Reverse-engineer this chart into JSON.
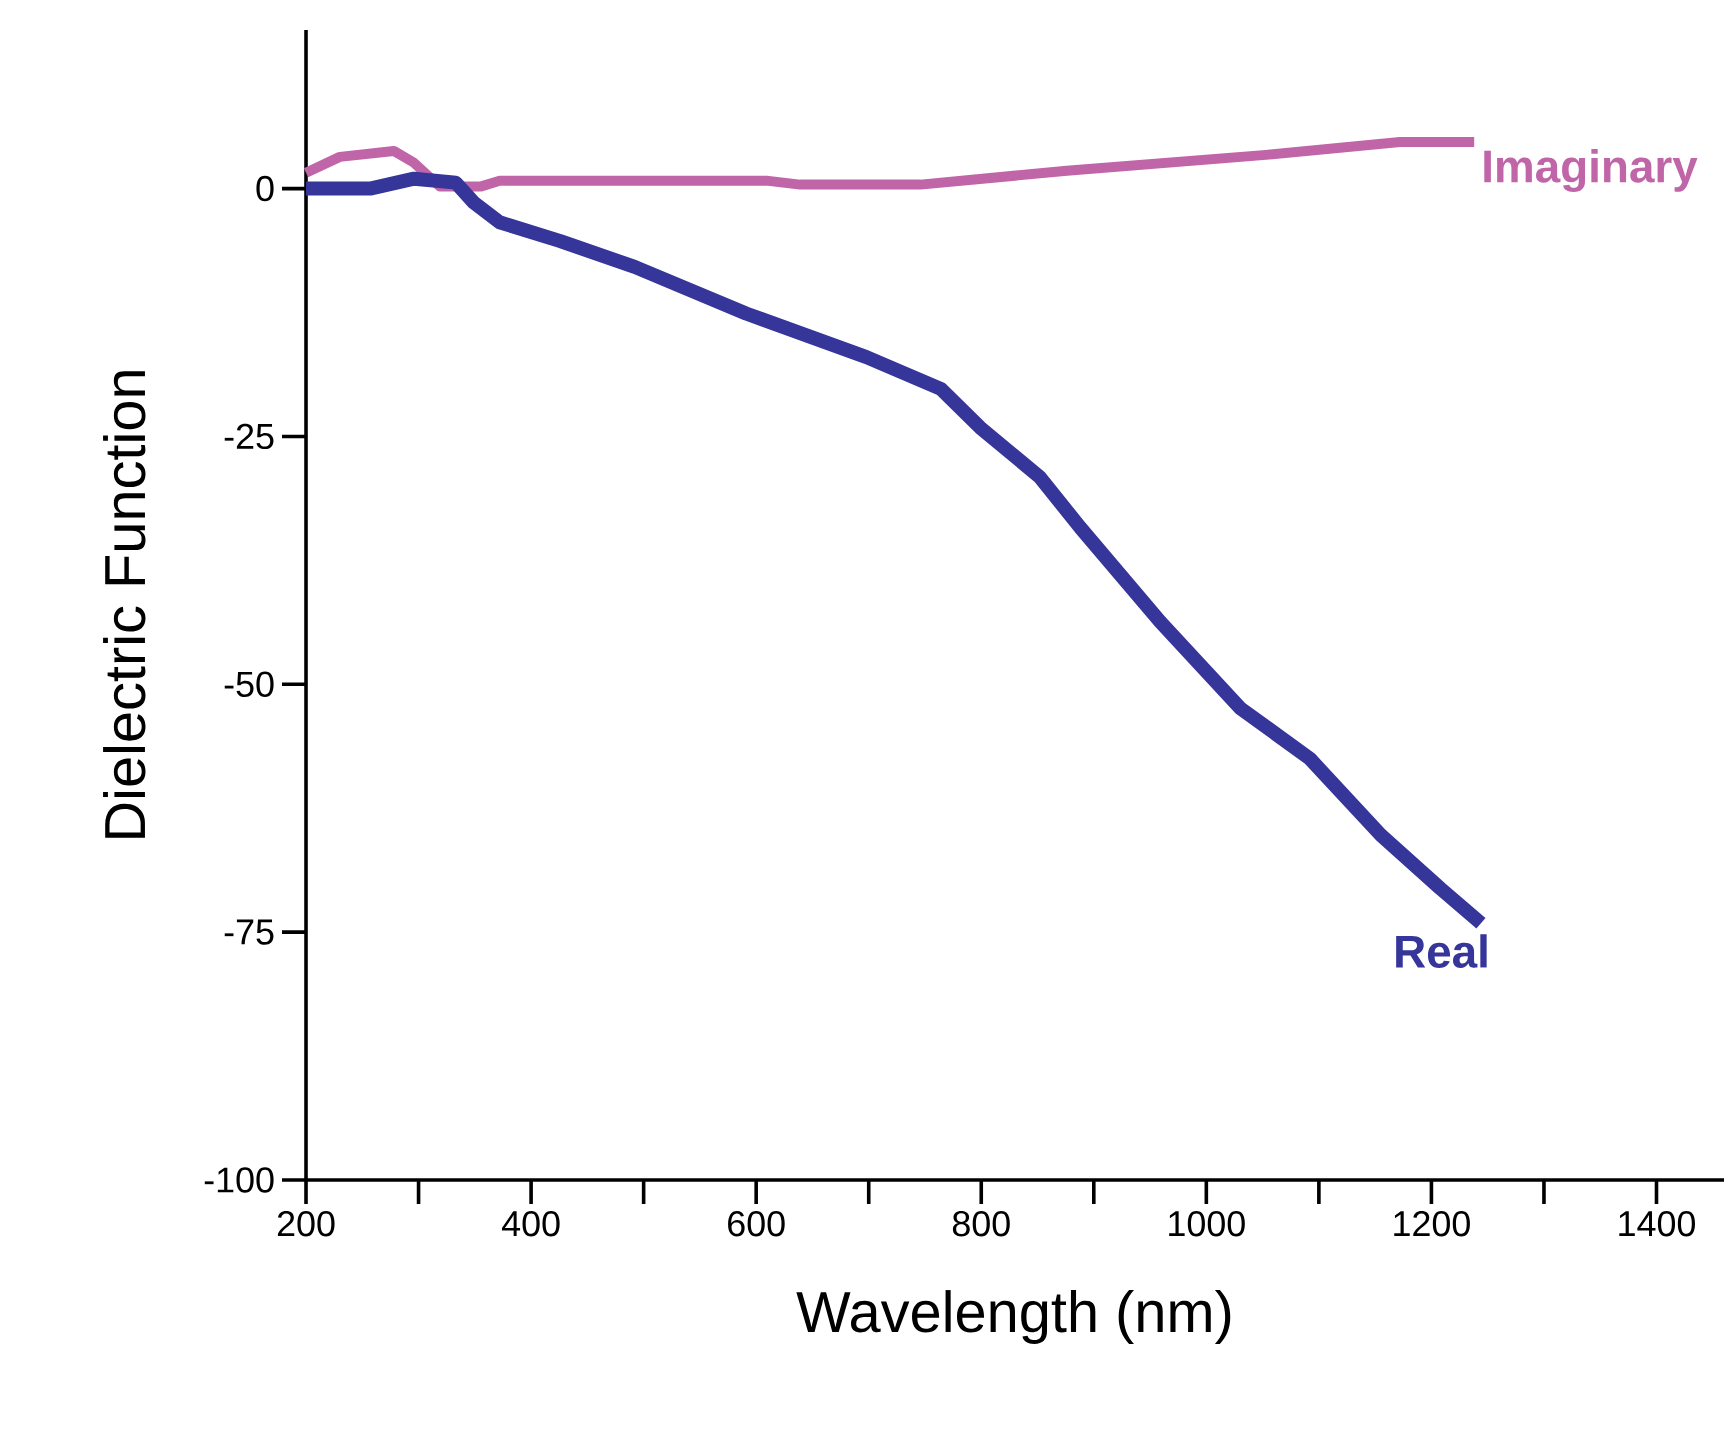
{
  "chart_data": {
    "type": "line",
    "xlabel": "Wavelength (nm)",
    "ylabel": "Dielectric Function",
    "xlim": [
      200,
      1460
    ],
    "ylim": [
      -100,
      16
    ],
    "xticks": [
      200,
      {
        "value": 300,
        "label": null
      },
      400,
      {
        "value": 500,
        "label": null
      },
      600,
      {
        "value": 700,
        "label": null
      },
      800,
      {
        "value": 900,
        "label": null
      },
      1000,
      {
        "value": 1100,
        "label": null
      },
      1200,
      {
        "value": 1300,
        "label": null
      },
      1400
    ],
    "yticks": [
      0,
      -25,
      -50,
      -75,
      -100
    ],
    "grid": false,
    "legend": false,
    "marker": "none",
    "line_style": "solid",
    "series": [
      {
        "name": "Imaginary",
        "color": "#c065a8",
        "x": [
          200,
          230,
          278,
          296,
          319,
          355,
          372,
          609,
          639,
          710,
          746,
          876,
          1053,
          1172,
          1238
        ],
        "values": [
          1.6,
          3.2,
          3.8,
          2.6,
          0.2,
          0.2,
          0.8,
          0.8,
          0.4,
          0.4,
          0.4,
          1.8,
          3.4,
          4.7,
          4.7
        ]
      },
      {
        "name": "Real",
        "color": "#35359a",
        "x": [
          200,
          257,
          296,
          333,
          349,
          372,
          426,
          492,
          591,
          698,
          764,
          799,
          852,
          888,
          959,
          1030,
          1092,
          1155,
          1208,
          1244
        ],
        "values": [
          0,
          0,
          1.0,
          0.6,
          -1.4,
          -3.4,
          -5.3,
          -7.9,
          -12.6,
          -17,
          -20.2,
          -24.1,
          -29.1,
          -34.2,
          -43.7,
          -52.4,
          -57.5,
          -65.2,
          -70.6,
          -74.1
        ]
      }
    ]
  }
}
